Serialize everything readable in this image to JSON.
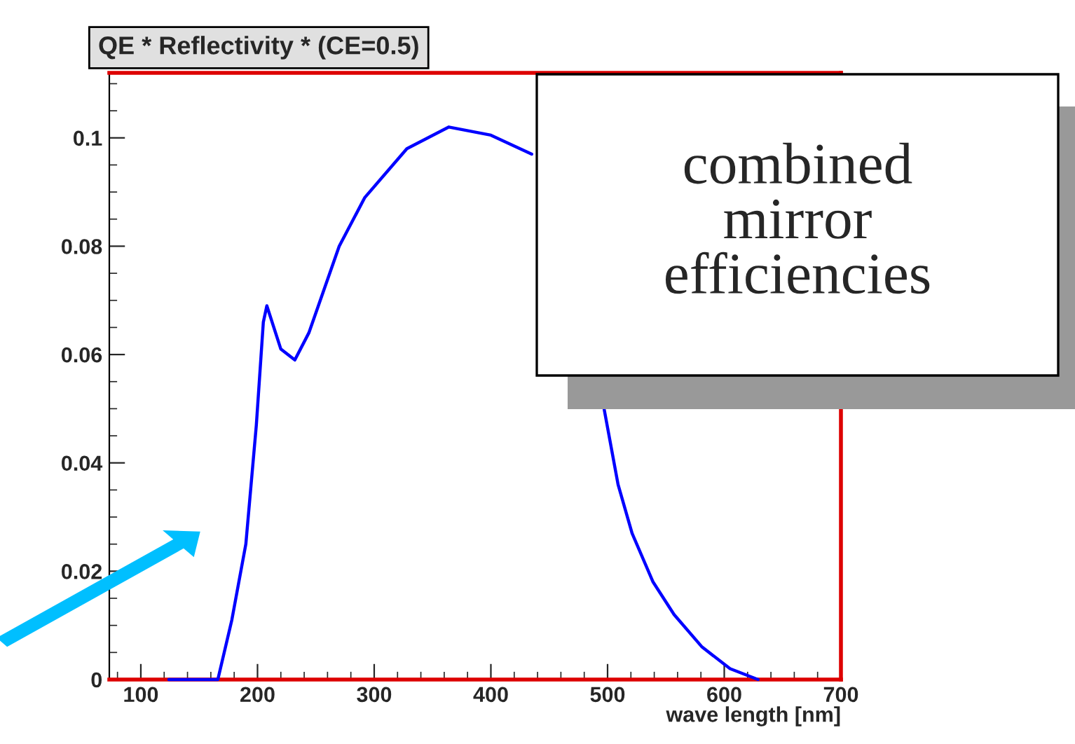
{
  "chart_data": {
    "type": "line",
    "title": "QE * Reflectivity * (CE=0.5)",
    "xlabel": "wave length [nm]",
    "x": [
      124,
      166,
      178,
      190,
      199,
      205,
      208,
      220,
      232,
      244,
      270,
      292,
      328,
      364,
      400,
      435,
      465,
      497,
      509,
      521,
      539,
      557,
      581,
      605,
      629
    ],
    "series": [
      {
        "color": "#0000ff",
        "values": [
          0,
          0,
          0.011,
          0.025,
          0.047,
          0.066,
          0.069,
          0.061,
          0.059,
          0.064,
          0.08,
          0.089,
          0.098,
          0.102,
          0.1005,
          0.097,
          null,
          0.05,
          0.036,
          0.027,
          0.018,
          0.012,
          0.006,
          0.002,
          0
        ]
      }
    ],
    "xlim": [
      73,
      700
    ],
    "ylim": [
      0,
      0.112
    ],
    "xticks": [
      100,
      200,
      300,
      400,
      500,
      600,
      700
    ],
    "yticks": [
      0,
      0.02,
      0.04,
      0.06,
      0.08,
      0.1
    ],
    "annotations": [
      "combined\nmirror\nefficiencies"
    ],
    "grid": false,
    "line_style": "solid"
  }
}
